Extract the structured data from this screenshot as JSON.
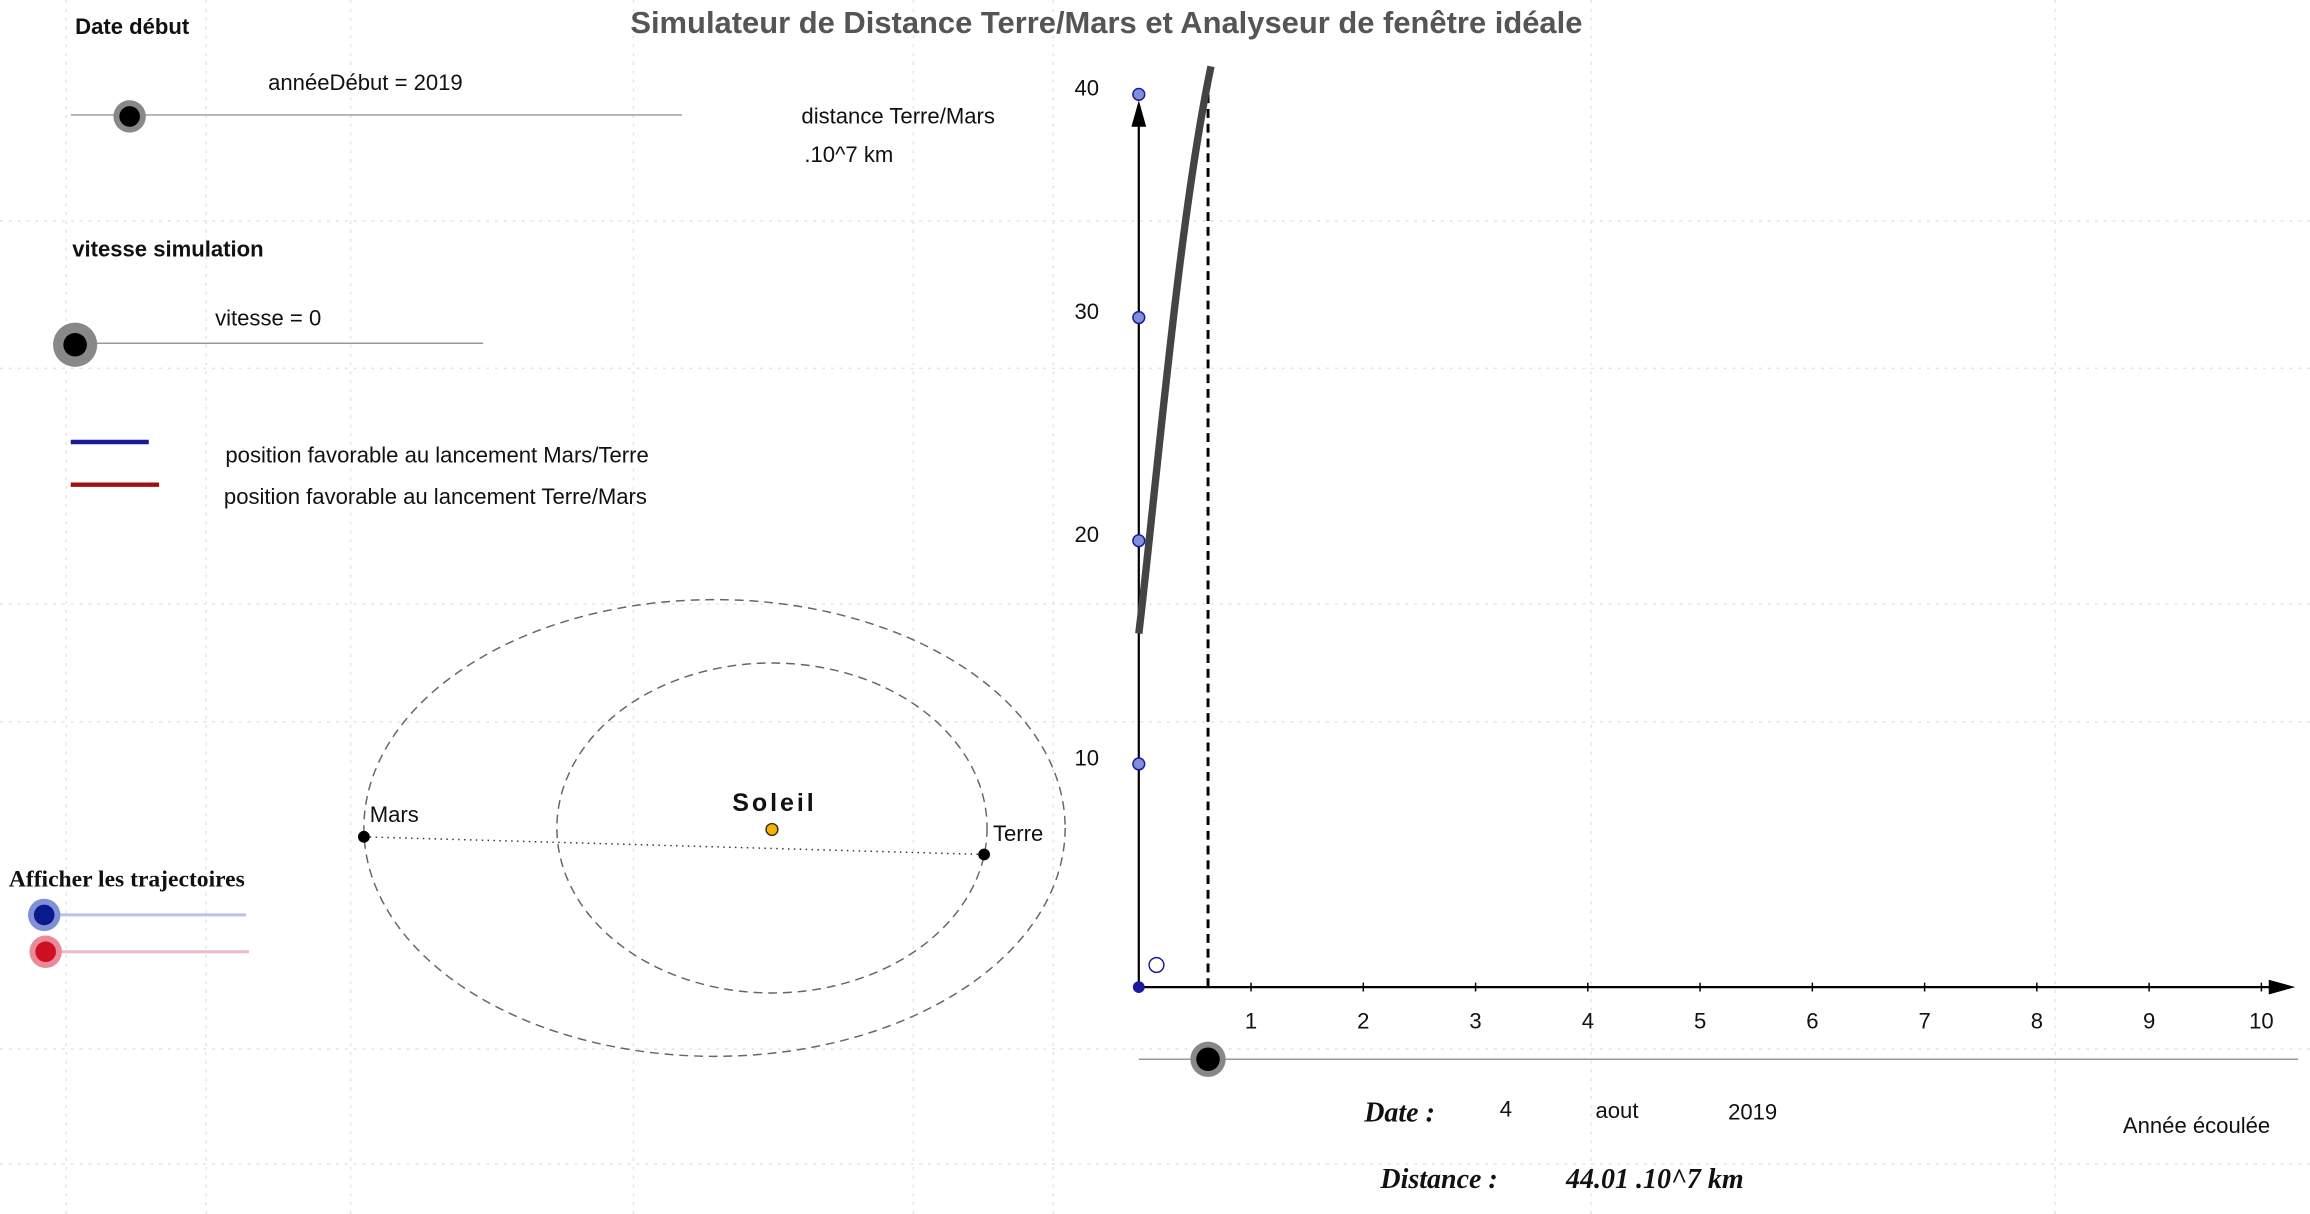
{
  "title": "Simulateur de Distance Terre/Mars et Analyseur de fenêtre idéale",
  "start_date": {
    "label": "Date début",
    "slider": "annéeDébut = 2019"
  },
  "distance_unit": {
    "line1": "distance Terre/Mars",
    "line2": ".10^7 km"
  },
  "speed": {
    "label": "vitesse simulation",
    "slider": "vitesse = 0"
  },
  "legend": [
    "position favorable au lancement Mars/Terre",
    "position favorable au lancement Terre/Mars"
  ],
  "orbit": {
    "sun": "Soleil",
    "mars": "Mars",
    "earth": "Terre"
  },
  "trajectories": "Afficher les trajectoires",
  "graph": {
    "xticks": [
      1,
      2,
      3,
      4,
      5,
      6,
      7,
      8,
      9,
      10
    ],
    "yticks": [
      10,
      20,
      30,
      40
    ],
    "x_label": "Année écoulée"
  },
  "date": {
    "label": "Date :",
    "day": 4,
    "month": "aout",
    "year": 2019
  },
  "distance": {
    "label": "Distance :",
    "value": "44.01 .10^7 km"
  }
}
